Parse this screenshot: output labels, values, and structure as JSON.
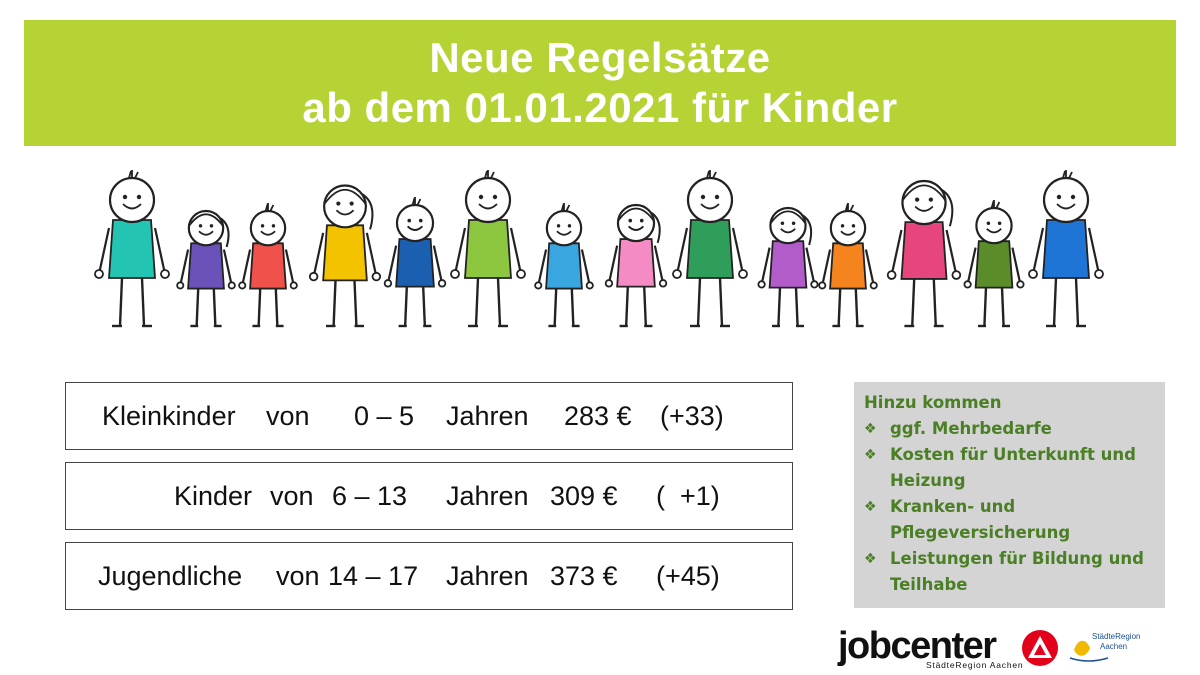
{
  "title": {
    "line1": "Neue Regelsätze",
    "line2": "ab dem 01.01.2021 für Kinder"
  },
  "people": {
    "shirt_colors": [
      "#23c4b2",
      "#6b52b8",
      "#f0524b",
      "#f4c300",
      "#1a5fb0",
      "#8dc63f",
      "#3aa6e0",
      "#f48bc4",
      "#2e9e5a",
      "#b25cc9",
      "#f5841f",
      "#e6457e",
      "#5a8d2a",
      "#1f75d6"
    ]
  },
  "rates": [
    {
      "group": "Kleinkinder",
      "von": "von",
      "age": "0 – 5",
      "unit": "Jahren",
      "amount": "283 €",
      "change": "(+33)"
    },
    {
      "group": "Kinder",
      "von": "von",
      "age": "6 – 13",
      "unit": "Jahren",
      "amount": "309 €",
      "change": "(  +1)"
    },
    {
      "group": "Jugendliche",
      "von": "von",
      "age": "14 – 17",
      "unit": "Jahren",
      "amount": "373 €",
      "change": "(+45)"
    }
  ],
  "info": {
    "heading": "Hinzu kommen",
    "bullet_icon": "diamond-bullet-icon",
    "items": [
      "ggf. Mehrbedarfe",
      "Kosten für Unterkunft und Heizung",
      "Kranken- und Pflegeversicherung",
      "Leistungen für Bildung und Teilhabe"
    ]
  },
  "logo": {
    "word": "jobcenter",
    "sub": "StädteRegion Aachen",
    "region_line1": "StädteRegion",
    "region_line2": "Aachen",
    "accent": "#e2001a"
  },
  "colors": {
    "banner": "#b5d334",
    "info_text": "#4a7f25",
    "info_bg": "#d4d4d4"
  }
}
